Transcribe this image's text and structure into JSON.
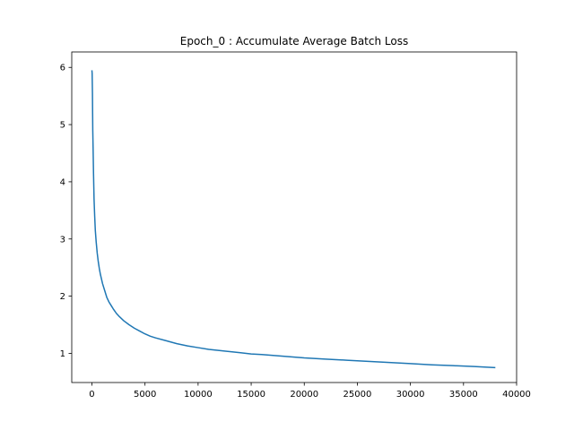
{
  "chart_data": {
    "type": "line",
    "title": "Epoch_0 : Accumulate Average Batch Loss",
    "xlabel": "",
    "ylabel": "",
    "xlim": [
      -1900,
      40000
    ],
    "ylim": [
      0.49,
      6.27
    ],
    "xticks": [
      0,
      5000,
      10000,
      15000,
      20000,
      25000,
      30000,
      35000,
      40000
    ],
    "yticks": [
      1,
      2,
      3,
      4,
      5,
      6
    ],
    "grid": false,
    "legend": "none",
    "series_color": "#1f77b4",
    "series": [
      {
        "x": [
          0,
          20,
          50,
          80,
          110,
          150,
          200,
          260,
          320,
          400,
          500,
          600,
          700,
          800,
          900,
          1000,
          1200,
          1400,
          1600,
          1800,
          2000,
          2300,
          2600,
          3000,
          3500,
          4000,
          4500,
          5000,
          5500,
          6000,
          7000,
          8000,
          9000,
          10000,
          11000,
          12000,
          13000,
          14000,
          15000,
          16000,
          18000,
          20000,
          22000,
          24000,
          26000,
          28000,
          30000,
          32000,
          34000,
          36000,
          38000
        ],
        "y": [
          5.95,
          5.9,
          5.55,
          4.9,
          4.6,
          4.15,
          3.7,
          3.4,
          3.15,
          2.95,
          2.75,
          2.6,
          2.48,
          2.38,
          2.3,
          2.22,
          2.1,
          1.98,
          1.9,
          1.84,
          1.78,
          1.7,
          1.64,
          1.57,
          1.5,
          1.44,
          1.39,
          1.34,
          1.3,
          1.27,
          1.22,
          1.17,
          1.13,
          1.1,
          1.07,
          1.05,
          1.03,
          1.01,
          0.99,
          0.98,
          0.95,
          0.92,
          0.9,
          0.88,
          0.86,
          0.84,
          0.82,
          0.8,
          0.785,
          0.77,
          0.75
        ]
      }
    ]
  }
}
